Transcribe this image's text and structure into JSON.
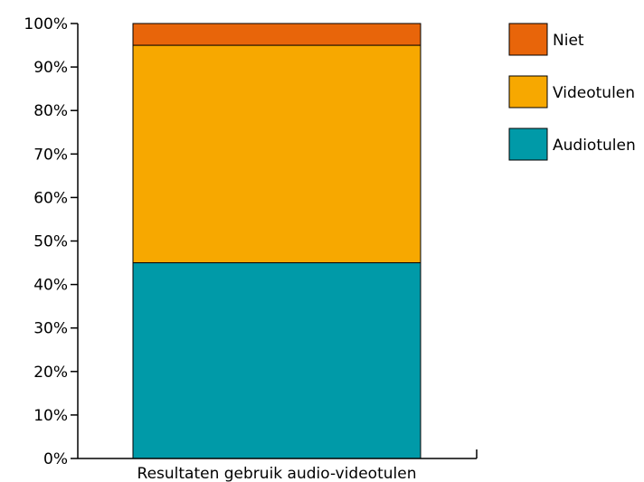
{
  "chart_data": {
    "type": "bar",
    "stacked": true,
    "categories": [
      "Resultaten gebruik audio-videotulen"
    ],
    "series": [
      {
        "name": "Audiotulen",
        "values": [
          45
        ],
        "color": "#009aa8"
      },
      {
        "name": "Videotulen",
        "values": [
          50
        ],
        "color": "#f7a800"
      },
      {
        "name": "Niet",
        "values": [
          5
        ],
        "color": "#e8650a"
      }
    ],
    "ylim": [
      0,
      100
    ],
    "yticks": [
      "0%",
      "10%",
      "20%",
      "30%",
      "40%",
      "50%",
      "60%",
      "70%",
      "80%",
      "90%",
      "100%"
    ],
    "grid": false,
    "legend_position": "top-right",
    "legend_order": [
      "Niet",
      "Videotulen",
      "Audiotulen"
    ]
  }
}
